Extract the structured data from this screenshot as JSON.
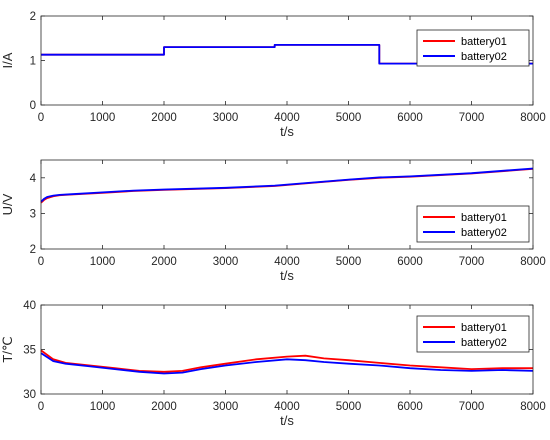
{
  "colors": {
    "battery01": "#ff0000",
    "battery02": "#0000ff",
    "axis": "#262626"
  },
  "chart_data": [
    {
      "type": "line",
      "xlabel": "t/s",
      "ylabel": "I/A",
      "xlim": [
        0,
        8000
      ],
      "ylim": [
        0,
        2
      ],
      "xticks": [
        "0",
        "1000",
        "2000",
        "3000",
        "4000",
        "5000",
        "6000",
        "7000",
        "8000"
      ],
      "yticks": [
        "0",
        "1",
        "2"
      ],
      "grid": false,
      "legend": "top-right",
      "series": [
        {
          "name": "battery01",
          "color": "#ff0000",
          "x": [
            0,
            2000,
            2000,
            3800,
            3800,
            5500,
            5500,
            8000
          ],
          "y": [
            1.13,
            1.13,
            1.3,
            1.3,
            1.35,
            1.35,
            0.93,
            0.93
          ]
        },
        {
          "name": "battery02",
          "color": "#0000ff",
          "x": [
            0,
            2000,
            2000,
            3800,
            3800,
            5500,
            5500,
            8000
          ],
          "y": [
            1.13,
            1.13,
            1.3,
            1.3,
            1.35,
            1.35,
            0.93,
            0.93
          ]
        }
      ]
    },
    {
      "type": "line",
      "xlabel": "t/s",
      "ylabel": "U/V",
      "xlim": [
        0,
        8000
      ],
      "ylim": [
        2,
        4.5
      ],
      "xticks": [
        "0",
        "1000",
        "2000",
        "3000",
        "4000",
        "5000",
        "6000",
        "7000",
        "8000"
      ],
      "yticks": [
        "2",
        "3",
        "4"
      ],
      "grid": false,
      "legend": "bottom-right",
      "series": [
        {
          "name": "battery01",
          "color": "#ff0000",
          "x": [
            0,
            50,
            100,
            200,
            300,
            500,
            1000,
            1500,
            2000,
            3000,
            3800,
            4500,
            5000,
            5500,
            6000,
            7000,
            8000
          ],
          "y": [
            3.3,
            3.38,
            3.43,
            3.48,
            3.51,
            3.53,
            3.58,
            3.63,
            3.66,
            3.71,
            3.77,
            3.87,
            3.94,
            4.0,
            4.03,
            4.12,
            4.25
          ]
        },
        {
          "name": "battery02",
          "color": "#0000ff",
          "x": [
            0,
            50,
            100,
            200,
            300,
            500,
            1000,
            1500,
            2000,
            3000,
            3800,
            4500,
            5000,
            5500,
            6000,
            7000,
            8000
          ],
          "y": [
            3.33,
            3.41,
            3.46,
            3.5,
            3.52,
            3.54,
            3.59,
            3.64,
            3.67,
            3.72,
            3.78,
            3.88,
            3.95,
            4.01,
            4.04,
            4.13,
            4.26
          ]
        }
      ]
    },
    {
      "type": "line",
      "xlabel": "t/s",
      "ylabel": "T/℃",
      "xlim": [
        0,
        8000
      ],
      "ylim": [
        30,
        40
      ],
      "xticks": [
        "0",
        "1000",
        "2000",
        "3000",
        "4000",
        "5000",
        "6000",
        "7000",
        "8000"
      ],
      "yticks": [
        "30",
        "35",
        "40"
      ],
      "grid": false,
      "legend": "top-right",
      "series": [
        {
          "name": "battery01",
          "color": "#ff0000",
          "x": [
            0,
            200,
            400,
            800,
            1200,
            1600,
            2000,
            2300,
            2600,
            3000,
            3500,
            4000,
            4300,
            4600,
            5000,
            5500,
            6000,
            6500,
            7000,
            7500,
            8000
          ],
          "y": [
            34.9,
            33.9,
            33.5,
            33.2,
            32.9,
            32.6,
            32.5,
            32.6,
            33.0,
            33.4,
            33.9,
            34.2,
            34.3,
            34.0,
            33.8,
            33.5,
            33.2,
            33.0,
            32.8,
            32.9,
            32.9
          ]
        },
        {
          "name": "battery02",
          "color": "#0000ff",
          "x": [
            0,
            200,
            400,
            800,
            1200,
            1600,
            2000,
            2300,
            2600,
            3000,
            3500,
            4000,
            4300,
            4600,
            5000,
            5500,
            6000,
            6500,
            7000,
            7500,
            8000
          ],
          "y": [
            34.6,
            33.7,
            33.4,
            33.1,
            32.8,
            32.5,
            32.3,
            32.4,
            32.8,
            33.2,
            33.6,
            33.9,
            33.8,
            33.6,
            33.4,
            33.2,
            32.9,
            32.7,
            32.6,
            32.7,
            32.6
          ]
        }
      ]
    }
  ]
}
